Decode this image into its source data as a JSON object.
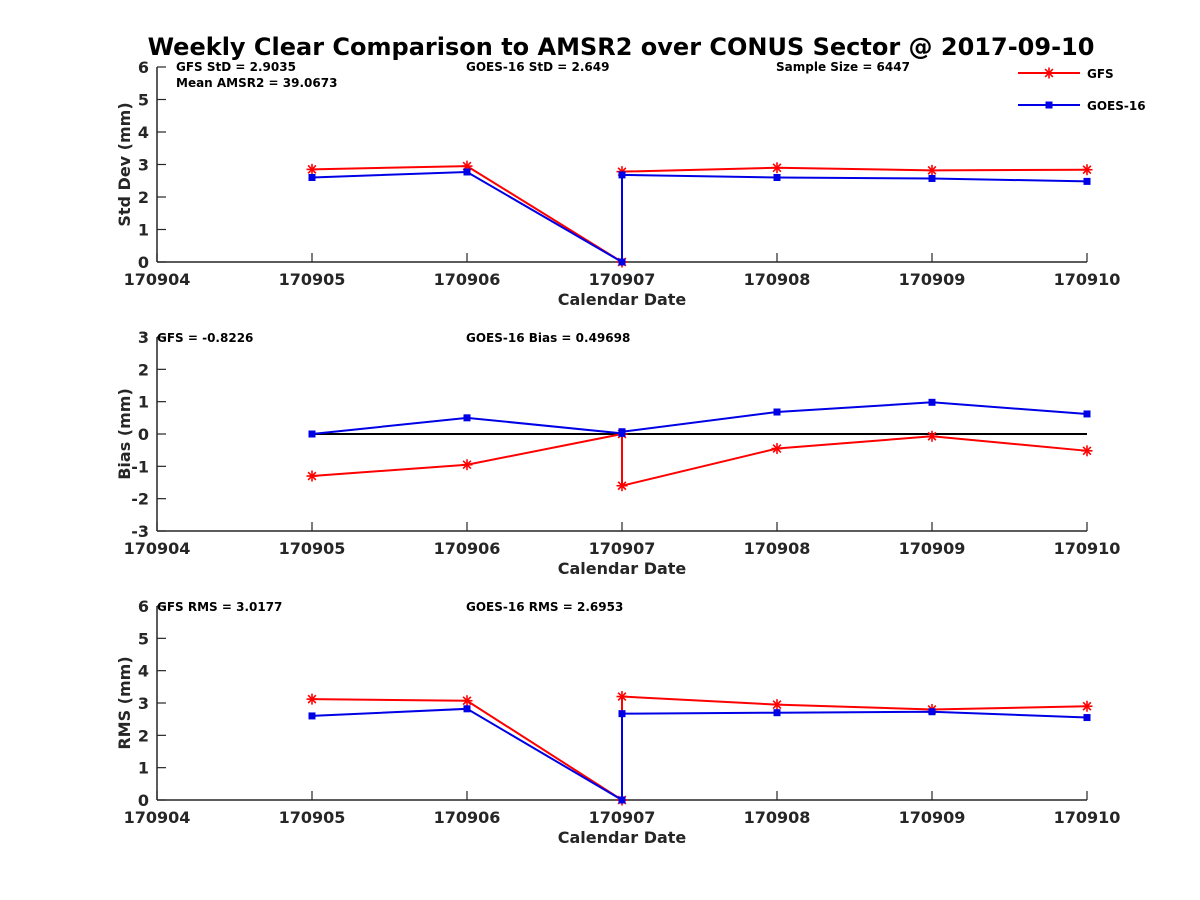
{
  "colors": {
    "gfs": "#ff0000",
    "goes": "#0000e6",
    "axis": "#262626",
    "zero_line": "#000000"
  },
  "legend": {
    "placement": "top-right",
    "items": [
      {
        "label": "GFS",
        "marker": "asterisk",
        "color": "#ff0000"
      },
      {
        "label": "GOES-16",
        "marker": "square",
        "color": "#0000e6"
      }
    ]
  },
  "chart_data": [
    {
      "type": "line",
      "title": "Weekly Clear Comparison to AMSR2 over CONUS Sector @ 2017-09-10",
      "xlabel": "Calendar Date",
      "ylabel": "Std Dev (mm)",
      "xlim": [
        "170904",
        "170910"
      ],
      "ylim": [
        0,
        6
      ],
      "x_ticks": [
        "170904",
        "170905",
        "170906",
        "170907",
        "170908",
        "170909",
        "170910"
      ],
      "y_ticks": [
        "0",
        "1",
        "2",
        "3",
        "4",
        "5",
        "6"
      ],
      "zero_line": false,
      "annotations": [
        "GFS StD = 2.9035",
        "Mean AMSR2 = 39.0673",
        "GOES-16 StD = 2.649",
        "Sample Size = 6447"
      ],
      "series": [
        {
          "name": "GFS",
          "color": "#ff0000",
          "marker": "asterisk",
          "x": [
            "170905",
            "170906",
            "170907",
            "170907",
            "170908",
            "170909",
            "170910"
          ],
          "y": [
            2.85,
            2.95,
            0.0,
            2.78,
            2.9,
            2.82,
            2.84
          ]
        },
        {
          "name": "GOES-16",
          "color": "#0000e6",
          "marker": "square",
          "x": [
            "170905",
            "170906",
            "170907",
            "170907",
            "170908",
            "170909",
            "170910"
          ],
          "y": [
            2.6,
            2.77,
            0.0,
            2.68,
            2.6,
            2.57,
            2.48
          ]
        }
      ]
    },
    {
      "type": "line",
      "xlabel": "Calendar Date",
      "ylabel": "Bias (mm)",
      "xlim": [
        "170904",
        "170910"
      ],
      "ylim": [
        -3,
        3
      ],
      "x_ticks": [
        "170904",
        "170905",
        "170906",
        "170907",
        "170908",
        "170909",
        "170910"
      ],
      "y_ticks": [
        "-3",
        "-2",
        "-1",
        "0",
        "1",
        "2",
        "3"
      ],
      "zero_line": true,
      "annotations": [
        "GFS = -0.8226",
        "GOES-16 Bias  = 0.49698"
      ],
      "series": [
        {
          "name": "GFS",
          "color": "#ff0000",
          "marker": "asterisk",
          "x": [
            "170905",
            "170906",
            "170907",
            "170907",
            "170908",
            "170909",
            "170910"
          ],
          "y": [
            -1.3,
            -0.95,
            0.0,
            -1.6,
            -0.45,
            -0.07,
            -0.52
          ]
        },
        {
          "name": "GOES-16",
          "color": "#0000e6",
          "marker": "square",
          "x": [
            "170905",
            "170906",
            "170907",
            "170907",
            "170908",
            "170909",
            "170910"
          ],
          "y": [
            0.0,
            0.5,
            0.02,
            0.07,
            0.68,
            0.98,
            0.62
          ]
        }
      ]
    },
    {
      "type": "line",
      "xlabel": "Calendar Date",
      "ylabel": "RMS (mm)",
      "xlim": [
        "170904",
        "170910"
      ],
      "ylim": [
        0,
        6
      ],
      "x_ticks": [
        "170904",
        "170905",
        "170906",
        "170907",
        "170908",
        "170909",
        "170910"
      ],
      "y_ticks": [
        "0",
        "1",
        "2",
        "3",
        "4",
        "5",
        "6"
      ],
      "zero_line": false,
      "annotations": [
        "GFS RMS = 3.0177",
        "GOES-16 RMS = 2.6953"
      ],
      "series": [
        {
          "name": "GFS",
          "color": "#ff0000",
          "marker": "asterisk",
          "x": [
            "170905",
            "170906",
            "170907",
            "170907",
            "170908",
            "170909",
            "170910"
          ],
          "y": [
            3.12,
            3.07,
            0.0,
            3.2,
            2.95,
            2.8,
            2.9
          ]
        },
        {
          "name": "GOES-16",
          "color": "#0000e6",
          "marker": "square",
          "x": [
            "170905",
            "170906",
            "170907",
            "170907",
            "170908",
            "170909",
            "170910"
          ],
          "y": [
            2.6,
            2.82,
            0.0,
            2.67,
            2.7,
            2.73,
            2.55
          ]
        }
      ]
    }
  ]
}
